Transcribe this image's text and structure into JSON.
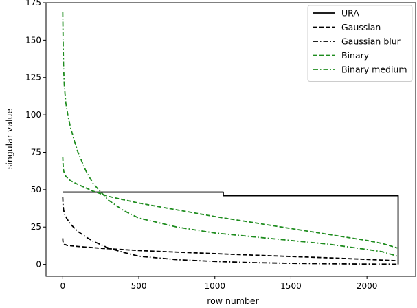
{
  "chart_data": {
    "type": "line",
    "title": "",
    "xlabel": "row number",
    "ylabel": "singular value",
    "xlim": [
      -110,
      2320
    ],
    "ylim": [
      -8,
      175
    ],
    "xticks": [
      0,
      500,
      1000,
      1500,
      2000
    ],
    "yticks": [
      0,
      25,
      50,
      75,
      100,
      125,
      150,
      175
    ],
    "grid": false,
    "legend_position": "top-right",
    "series": [
      {
        "name": "URA",
        "color": "#000000",
        "dash": "solid",
        "x": [
          0,
          1055,
          1055,
          2205,
          2205
        ],
        "y": [
          48.3,
          48.3,
          46,
          46,
          0
        ]
      },
      {
        "name": "Gaussian",
        "color": "#000000",
        "dash": "dashed",
        "x": [
          0,
          1,
          3,
          10,
          30,
          100,
          250,
          500,
          750,
          1000,
          1250,
          1500,
          1750,
          2000,
          2200
        ],
        "y": [
          17.5,
          15.5,
          14.5,
          13.5,
          12.7,
          12,
          10.8,
          9.3,
          8.2,
          7.2,
          6.2,
          5.3,
          4.4,
          3.4,
          2.5
        ]
      },
      {
        "name": "Gaussian blur",
        "color": "#000000",
        "dash": "dashdot",
        "x": [
          0,
          2,
          5,
          10,
          25,
          50,
          100,
          150,
          200,
          300,
          400,
          500,
          750,
          1000,
          1250,
          1500,
          1750,
          2000,
          2200
        ],
        "y": [
          45,
          40,
          37,
          34,
          31,
          27,
          22,
          18.5,
          15.5,
          11,
          8,
          5.5,
          3.2,
          2,
          1.2,
          0.7,
          0.4,
          0.2,
          0.1
        ]
      },
      {
        "name": "Binary",
        "color": "#1e8c1e",
        "dash": "dashed",
        "x": [
          0,
          2,
          5,
          10,
          20,
          50,
          100,
          200,
          300,
          500,
          750,
          1000,
          1250,
          1500,
          1750,
          2000,
          2100,
          2200
        ],
        "y": [
          72,
          67,
          63,
          61,
          59,
          56,
          53.5,
          49,
          45.5,
          41,
          36.5,
          32,
          28,
          24,
          20,
          16,
          14,
          11
        ]
      },
      {
        "name": "Binary medium",
        "color": "#1e8c1e",
        "dash": "dashdot",
        "x": [
          0,
          1,
          3,
          5,
          10,
          20,
          35,
          50,
          75,
          100,
          150,
          200,
          300,
          400,
          500,
          750,
          1000,
          1250,
          1500,
          1750,
          2000,
          2100,
          2200
        ],
        "y": [
          169,
          160,
          145,
          133,
          120,
          108,
          99,
          92,
          83,
          75,
          63,
          54,
          43,
          36,
          31,
          25,
          21,
          18.5,
          16,
          13.5,
          10,
          8.5,
          5.5
        ]
      }
    ]
  }
}
